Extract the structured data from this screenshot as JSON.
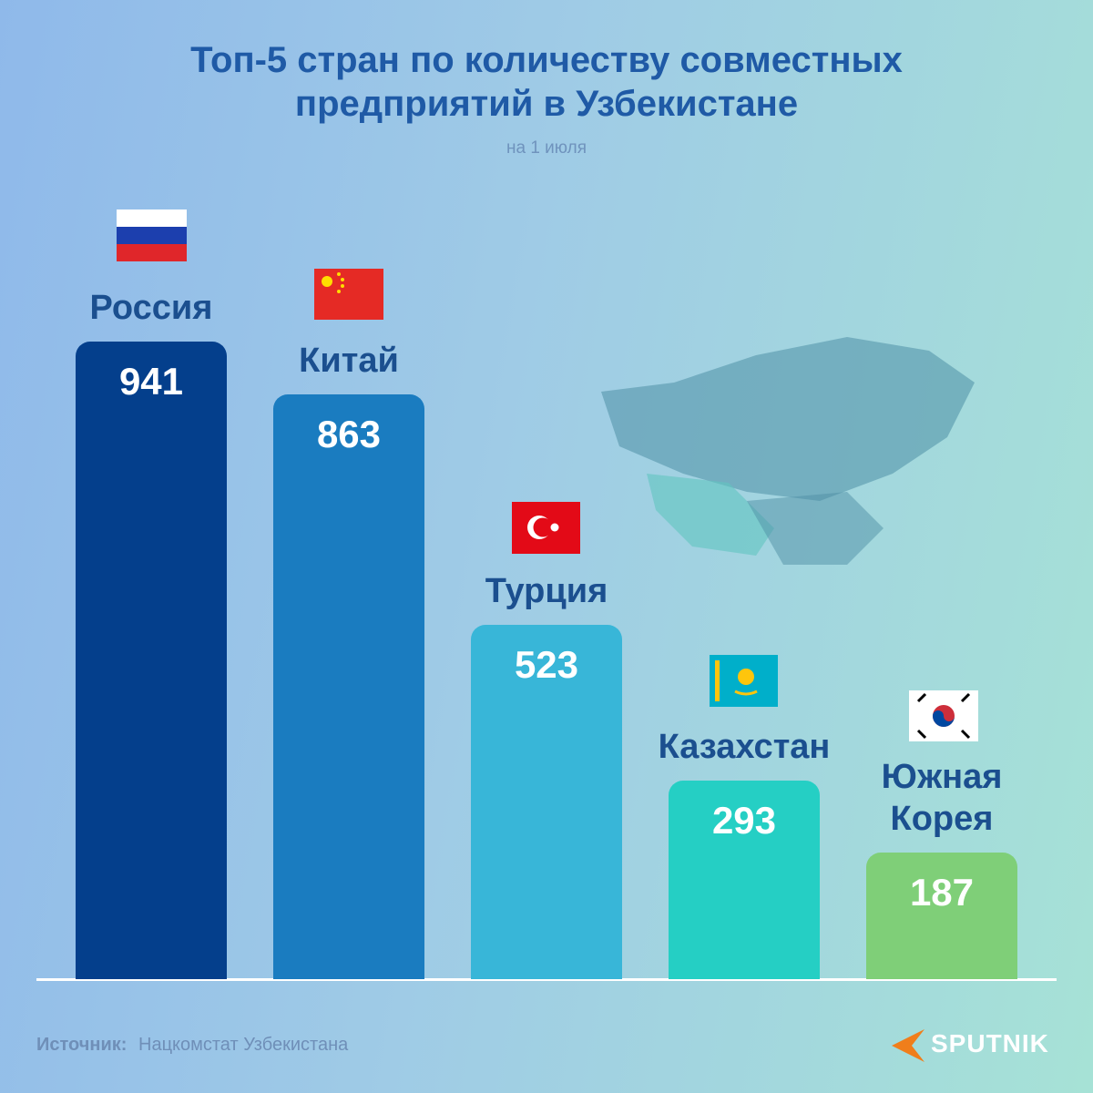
{
  "chart_data": {
    "type": "bar",
    "title": "Топ-5 стран по количеству совместных предприятий в Узбекистане",
    "subtitle": "на 1 июля",
    "categories": [
      "Россия",
      "Китай",
      "Турция",
      "Казахстан",
      "Южная Корея"
    ],
    "values": [
      941,
      863,
      523,
      293,
      187
    ],
    "colors": [
      "#043f8c",
      "#1a7cc0",
      "#38b6d8",
      "#25cfc4",
      "#7fcf78"
    ],
    "source_label": "Источник:",
    "source": "Нацкомстат Узбекистана",
    "brand": "SPUTNIK"
  }
}
